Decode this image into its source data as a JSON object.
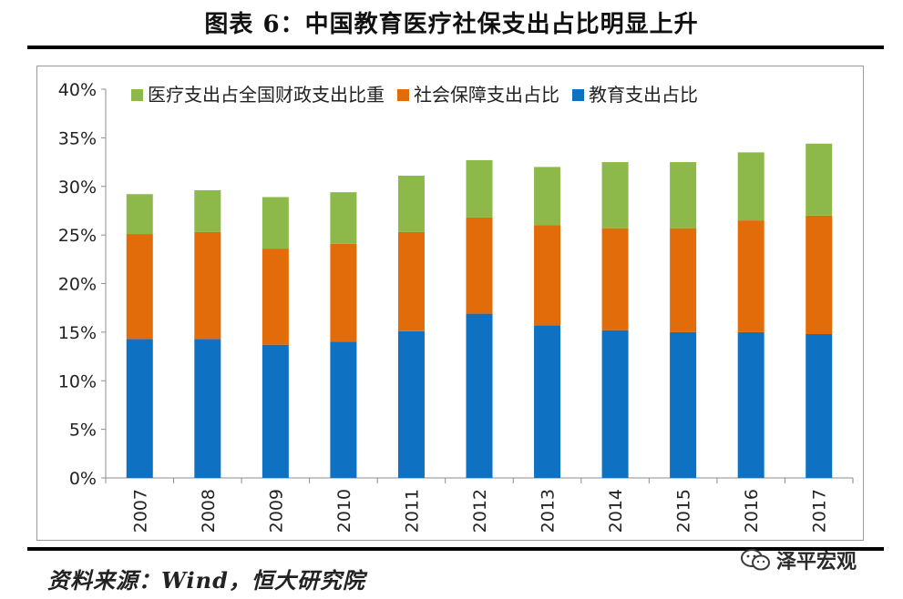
{
  "title": "图表 6：中国教育医疗社保支出占比明显上升",
  "source": "资料来源：Wind，恒大研究院",
  "watermark": "泽平宏观",
  "chart_data": {
    "type": "bar",
    "stacked": true,
    "title": "",
    "xlabel": "",
    "ylabel": "",
    "ylim": [
      0,
      40
    ],
    "yticks": [
      "0%",
      "5%",
      "10%",
      "15%",
      "20%",
      "25%",
      "30%",
      "35%",
      "40%"
    ],
    "legend_position": "top",
    "grid": false,
    "categories": [
      "2007",
      "2008",
      "2009",
      "2010",
      "2011",
      "2012",
      "2013",
      "2014",
      "2015",
      "2016",
      "2017"
    ],
    "series": [
      {
        "name": "教育支出占比",
        "color": "#0E71C1",
        "values": [
          14.3,
          14.3,
          13.7,
          14.0,
          15.1,
          16.9,
          15.7,
          15.2,
          15.0,
          15.0,
          14.8
        ]
      },
      {
        "name": "社会保障支出占比",
        "color": "#E36C0A",
        "values": [
          10.8,
          11.0,
          9.9,
          10.1,
          10.2,
          9.9,
          10.3,
          10.5,
          10.7,
          11.5,
          12.2
        ]
      },
      {
        "name": "医疗支出占全国财政支出比重",
        "color": "#8DB84A",
        "values": [
          4.1,
          4.3,
          5.3,
          5.3,
          5.8,
          5.9,
          6.0,
          6.8,
          6.8,
          7.0,
          7.4
        ]
      }
    ],
    "legend_order": [
      "医疗支出占全国财政支出比重",
      "社会保障支出占比",
      "教育支出占比"
    ]
  }
}
